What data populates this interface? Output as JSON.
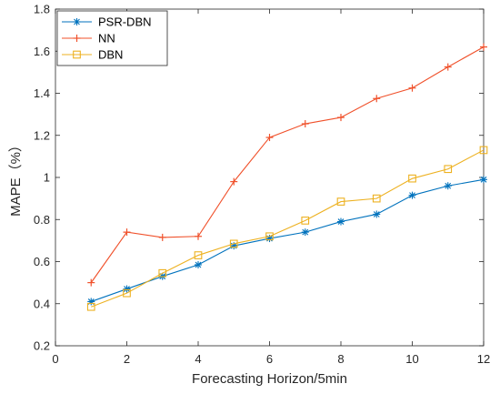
{
  "chart_data": {
    "type": "line",
    "xlabel": "Forecasting Horizon/5min",
    "ylabel": "MAPE（%）",
    "xlim": [
      0,
      12
    ],
    "ylim": [
      0.2,
      1.8
    ],
    "x_ticks": [
      0,
      2,
      4,
      6,
      8,
      10,
      12
    ],
    "x_tick_labels": [
      "0",
      "2",
      "4",
      "6",
      "8",
      "10",
      "12"
    ],
    "y_ticks": [
      0.2,
      0.4,
      0.6,
      0.8,
      1.0,
      1.2,
      1.4,
      1.6,
      1.8
    ],
    "y_tick_labels": [
      "0.2",
      "0.4",
      "0.6",
      "0.8",
      "1",
      "1.2",
      "1.4",
      "1.6",
      "1.8"
    ],
    "grid": false,
    "legend_position": "top-left",
    "x": [
      1,
      2,
      3,
      4,
      5,
      6,
      7,
      8,
      9,
      10,
      11,
      12
    ],
    "series": [
      {
        "name": "PSR-DBN",
        "marker": "asterisk",
        "color": "#0072BD",
        "values": [
          0.41,
          0.47,
          0.53,
          0.585,
          0.675,
          0.71,
          0.74,
          0.79,
          0.825,
          0.915,
          0.96,
          0.99
        ]
      },
      {
        "name": "NN",
        "marker": "plus",
        "color": "#F0502A",
        "values": [
          0.5,
          0.74,
          0.715,
          0.72,
          0.98,
          1.19,
          1.255,
          1.285,
          1.375,
          1.425,
          1.525,
          1.62
        ]
      },
      {
        "name": "DBN",
        "marker": "square",
        "color": "#EDB120",
        "values": [
          0.385,
          0.45,
          0.545,
          0.63,
          0.685,
          0.72,
          0.795,
          0.885,
          0.9,
          0.995,
          1.04,
          1.13
        ]
      }
    ]
  }
}
